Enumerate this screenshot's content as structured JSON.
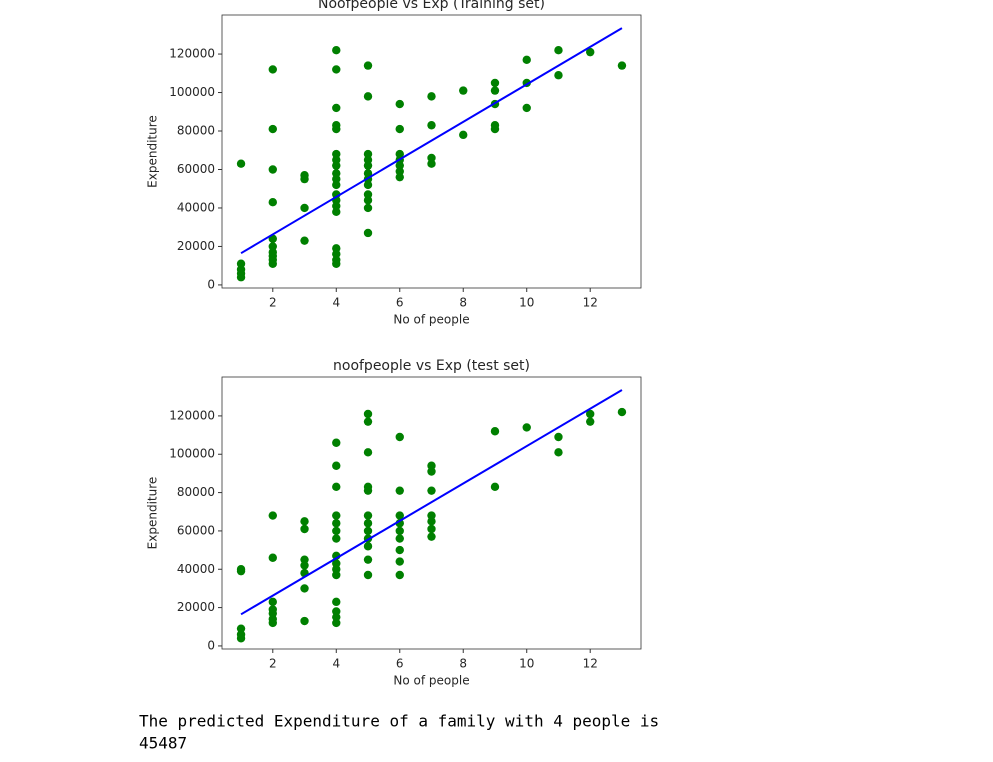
{
  "chart_data": [
    {
      "type": "scatter",
      "title": "Noofpeople vs Exp (Training set)",
      "x_label": "No of people",
      "y_label": "Expenditure",
      "xlim": [
        0.4,
        13.6
      ],
      "ylim": [
        -1600,
        140300
      ],
      "xticks": [
        2,
        4,
        6,
        8,
        10,
        12
      ],
      "yticks": [
        0,
        20000,
        40000,
        60000,
        80000,
        100000,
        120000
      ],
      "series": [
        {
          "mode": "markers",
          "color": "#008000",
          "x": [
            1,
            1,
            1,
            1,
            1,
            2,
            2,
            2,
            2,
            2,
            2,
            2,
            2,
            2,
            2,
            3,
            3,
            3,
            3,
            4,
            4,
            4,
            4,
            4,
            4,
            4,
            4,
            4,
            4,
            4,
            4,
            4,
            4,
            4,
            4,
            4,
            4,
            4,
            5,
            5,
            5,
            5,
            5,
            5,
            5,
            5,
            5,
            5,
            5,
            5,
            6,
            6,
            6,
            6,
            6,
            6,
            6,
            7,
            7,
            7,
            7,
            8,
            8,
            9,
            9,
            9,
            9,
            9,
            10,
            10,
            10,
            11,
            11,
            12,
            13
          ],
          "values": [
            63000,
            11000,
            8000,
            6000,
            4000,
            112000,
            81000,
            60000,
            43000,
            24000,
            20000,
            17000,
            15000,
            13000,
            11000,
            57000,
            55000,
            40000,
            23000,
            122000,
            112000,
            92000,
            83000,
            81000,
            68000,
            65000,
            62000,
            58000,
            55000,
            52000,
            47000,
            44000,
            41000,
            38000,
            19000,
            16000,
            13000,
            11000,
            114000,
            98000,
            68000,
            65000,
            62000,
            58000,
            55000,
            52000,
            47000,
            44000,
            40000,
            27000,
            94000,
            81000,
            68000,
            65000,
            62000,
            59000,
            56000,
            98000,
            83000,
            66000,
            63000,
            101000,
            78000,
            105000,
            101000,
            94000,
            83000,
            81000,
            117000,
            105000,
            92000,
            122000,
            109000,
            121000,
            114000
          ]
        },
        {
          "mode": "line",
          "color": "#0000ff",
          "x": [
            1,
            13
          ],
          "values": [
            16500,
            133500
          ]
        }
      ]
    },
    {
      "type": "scatter",
      "title": "noofpeople vs Exp (test set)",
      "x_label": "No of people",
      "y_label": "Expenditure",
      "xlim": [
        0.4,
        13.6
      ],
      "ylim": [
        -1600,
        140300
      ],
      "xticks": [
        2,
        4,
        6,
        8,
        10,
        12
      ],
      "yticks": [
        0,
        20000,
        40000,
        60000,
        80000,
        100000,
        120000
      ],
      "series": [
        {
          "mode": "markers",
          "color": "#008000",
          "x": [
            1,
            1,
            1,
            1,
            1,
            2,
            2,
            2,
            2,
            2,
            2,
            2,
            3,
            3,
            3,
            3,
            3,
            3,
            3,
            4,
            4,
            4,
            4,
            4,
            4,
            4,
            4,
            4,
            4,
            4,
            4,
            4,
            4,
            4,
            5,
            5,
            5,
            5,
            5,
            5,
            5,
            5,
            5,
            5,
            5,
            5,
            6,
            6,
            6,
            6,
            6,
            6,
            6,
            6,
            6,
            7,
            7,
            7,
            7,
            7,
            7,
            7,
            9,
            9,
            10,
            11,
            11,
            12,
            12,
            13
          ],
          "values": [
            40000,
            39000,
            9000,
            6000,
            4000,
            68000,
            46000,
            23000,
            19000,
            17000,
            14000,
            12000,
            65000,
            61000,
            45000,
            42000,
            38000,
            30000,
            13000,
            106000,
            94000,
            83000,
            68000,
            64000,
            60000,
            56000,
            47000,
            43000,
            40000,
            37000,
            23000,
            18000,
            15000,
            12000,
            121000,
            117000,
            101000,
            83000,
            81000,
            68000,
            64000,
            60000,
            56000,
            52000,
            45000,
            37000,
            109000,
            81000,
            68000,
            64000,
            60000,
            56000,
            50000,
            44000,
            37000,
            94000,
            91000,
            81000,
            68000,
            65000,
            61000,
            57000,
            112000,
            83000,
            114000,
            109000,
            101000,
            121000,
            117000,
            122000
          ]
        },
        {
          "mode": "line",
          "color": "#0000ff",
          "x": [
            1,
            13
          ],
          "values": [
            16500,
            133500
          ]
        }
      ]
    }
  ],
  "output": {
    "text": "The predicted Expenditure of a family with 4 people is",
    "value": "45487"
  }
}
